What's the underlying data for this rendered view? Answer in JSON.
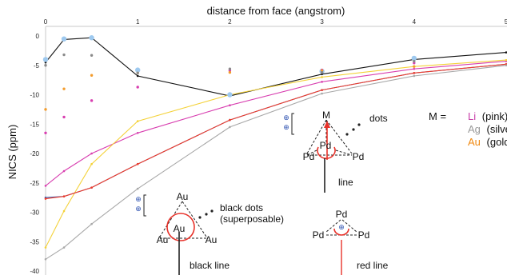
{
  "chart_data": {
    "type": "line",
    "xlabel": "distance from face (angstrom)",
    "ylabel": "NICS (ppm)",
    "xlim": [
      0,
      5
    ],
    "ylim": [
      -40,
      0
    ],
    "x_ticks": [
      "0",
      "1",
      "2",
      "3",
      "4",
      "5"
    ],
    "y_ticks": [
      "0",
      "-5",
      "-10",
      "-15",
      "-20",
      "-25",
      "-30",
      "-35",
      "-40"
    ],
    "grid": false,
    "series": [
      {
        "color": "#111111",
        "style": "line",
        "points": [
          [
            0,
            -4.5
          ],
          [
            0.2,
            -0.6
          ],
          [
            0.5,
            -0.3
          ],
          [
            1,
            -6.8
          ],
          [
            2,
            -10.2
          ],
          [
            3,
            -6.5
          ],
          [
            4,
            -4.0
          ],
          [
            5,
            -2.8
          ]
        ]
      },
      {
        "color": "#d83fb0",
        "style": "line",
        "points": [
          [
            0,
            -25.5
          ],
          [
            0.2,
            -23.0
          ],
          [
            0.5,
            -20.0
          ],
          [
            1,
            -16.5
          ],
          [
            2,
            -11.8
          ],
          [
            3,
            -7.8
          ],
          [
            4,
            -5.6
          ],
          [
            5,
            -4.3
          ]
        ]
      },
      {
        "color": "#f4d23a",
        "style": "line",
        "points": [
          [
            0,
            -36.0
          ],
          [
            0.2,
            -29.8
          ],
          [
            0.5,
            -21.8
          ],
          [
            1,
            -14.5
          ],
          [
            2,
            -10.0
          ],
          [
            3,
            -7.0
          ],
          [
            4,
            -5.2
          ],
          [
            5,
            -4.1
          ]
        ]
      },
      {
        "color": "#3f5fb0",
        "style": "line",
        "points": [
          [
            0,
            -27.5
          ],
          [
            0.2,
            -27.3
          ],
          [
            0.5,
            -25.8
          ],
          [
            1,
            -21.8
          ],
          [
            2,
            -14.3
          ],
          [
            3,
            -9.2
          ],
          [
            4,
            -6.3
          ],
          [
            5,
            -4.8
          ]
        ]
      },
      {
        "color": "#f03c2a",
        "style": "line",
        "points": [
          [
            0,
            -27.7
          ],
          [
            0.2,
            -27.3
          ],
          [
            0.5,
            -25.8
          ],
          [
            1,
            -21.8
          ],
          [
            2,
            -14.3
          ],
          [
            3,
            -9.2
          ],
          [
            4,
            -6.3
          ],
          [
            5,
            -4.8
          ]
        ]
      },
      {
        "color": "#a8a8a8",
        "style": "line",
        "points": [
          [
            0,
            -38.0
          ],
          [
            0.2,
            -36.0
          ],
          [
            0.5,
            -32.0
          ],
          [
            1,
            -26.0
          ],
          [
            2,
            -15.5
          ],
          [
            3,
            -9.8
          ],
          [
            4,
            -6.8
          ],
          [
            5,
            -5.0
          ]
        ]
      },
      {
        "color": "#9ec9ef",
        "style": "dots",
        "points": [
          [
            0,
            -4.0
          ],
          [
            0.2,
            -0.5
          ],
          [
            0.5,
            -0.3
          ],
          [
            1,
            -5.8
          ],
          [
            2,
            -10.0
          ],
          [
            3,
            -6.0
          ],
          [
            4,
            -3.8
          ]
        ]
      },
      {
        "color": "#d83fb0",
        "style": "dots",
        "points": [
          [
            0,
            -16.5
          ],
          [
            0.2,
            -13.8
          ],
          [
            0.5,
            -11.0
          ],
          [
            1,
            -8.7
          ],
          [
            2,
            -5.9
          ],
          [
            3,
            -5.8
          ],
          [
            4,
            -4.6
          ]
        ]
      },
      {
        "color": "#f39c2d",
        "style": "dots",
        "points": [
          [
            0,
            -12.5
          ],
          [
            0.2,
            -9.0
          ],
          [
            0.5,
            -6.7
          ],
          [
            1,
            -6.3
          ],
          [
            2,
            -6.2
          ],
          [
            3,
            -5.9
          ],
          [
            4,
            -5.2
          ]
        ]
      },
      {
        "color": "#8a8a8a",
        "style": "dots",
        "points": [
          [
            0,
            -5.0
          ],
          [
            0.2,
            -3.2
          ],
          [
            0.5,
            -3.3
          ],
          [
            1,
            -6.3
          ],
          [
            2,
            -5.6
          ],
          [
            3,
            -6.2
          ],
          [
            4,
            -4.3
          ]
        ]
      }
    ]
  },
  "annotations": {
    "diagram_m": {
      "top": "M",
      "left": "Pd",
      "right": "Pd",
      "center": "Pd",
      "dots_label": "dots",
      "line_label": "line"
    },
    "diagram_au": {
      "top": "Au",
      "left": "Au",
      "right": "Au",
      "center": "Au",
      "dots_label_1": "black dots",
      "dots_label_2": "(superposable)",
      "line_label": "black line"
    },
    "diagram_pd": {
      "top": "Pd",
      "left": "Pd",
      "right": "Pd",
      "line_label": "red line"
    },
    "legend": {
      "prefix": "M =",
      "entries": [
        {
          "symbol": "Li",
          "name": "(pink)",
          "color": "#c83ea8"
        },
        {
          "symbol": "Ag",
          "name": "(silver)",
          "color": "#9a9a9a"
        },
        {
          "symbol": "Au",
          "name": "(gold)",
          "color": "#f08a12"
        }
      ]
    }
  }
}
